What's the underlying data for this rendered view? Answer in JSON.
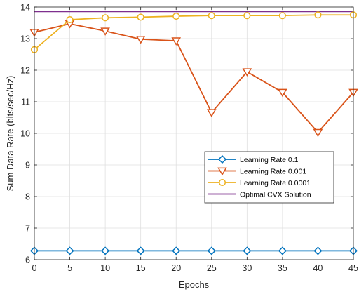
{
  "chart_data": {
    "type": "line",
    "title": "",
    "xlabel": "Epochs",
    "ylabel": "Sum Data Rate (bits/sec/Hz)",
    "xlim": [
      0,
      45
    ],
    "ylim": [
      6,
      14
    ],
    "xticks": [
      0,
      5,
      10,
      15,
      20,
      25,
      30,
      35,
      40,
      45
    ],
    "yticks": [
      6,
      7,
      8,
      9,
      10,
      11,
      12,
      13,
      14
    ],
    "grid": true,
    "legend_position": "center-right",
    "x": [
      0,
      5,
      10,
      15,
      20,
      25,
      30,
      35,
      40,
      45
    ],
    "series": [
      {
        "name": "Learning Rate 0.1",
        "color": "#0072BD",
        "marker": "diamond",
        "values": [
          6.28,
          6.28,
          6.28,
          6.28,
          6.28,
          6.28,
          6.28,
          6.28,
          6.28,
          6.28
        ]
      },
      {
        "name": "Learning Rate 0.001",
        "color": "#D95319",
        "marker": "triangle-down",
        "values": [
          13.2,
          13.47,
          13.24,
          12.98,
          12.93,
          10.66,
          11.95,
          11.3,
          10.03,
          11.3
        ]
      },
      {
        "name": "Learning Rate 0.0001",
        "color": "#EDB120",
        "marker": "circle",
        "values": [
          12.65,
          13.6,
          13.66,
          13.68,
          13.71,
          13.73,
          13.73,
          13.73,
          13.75,
          13.75
        ]
      },
      {
        "name": "Optimal CVX Solution",
        "color": "#7E2F8E",
        "marker": "none",
        "values": [
          13.86,
          13.86,
          13.86,
          13.86,
          13.86,
          13.86,
          13.86,
          13.86,
          13.86,
          13.86
        ]
      }
    ]
  }
}
